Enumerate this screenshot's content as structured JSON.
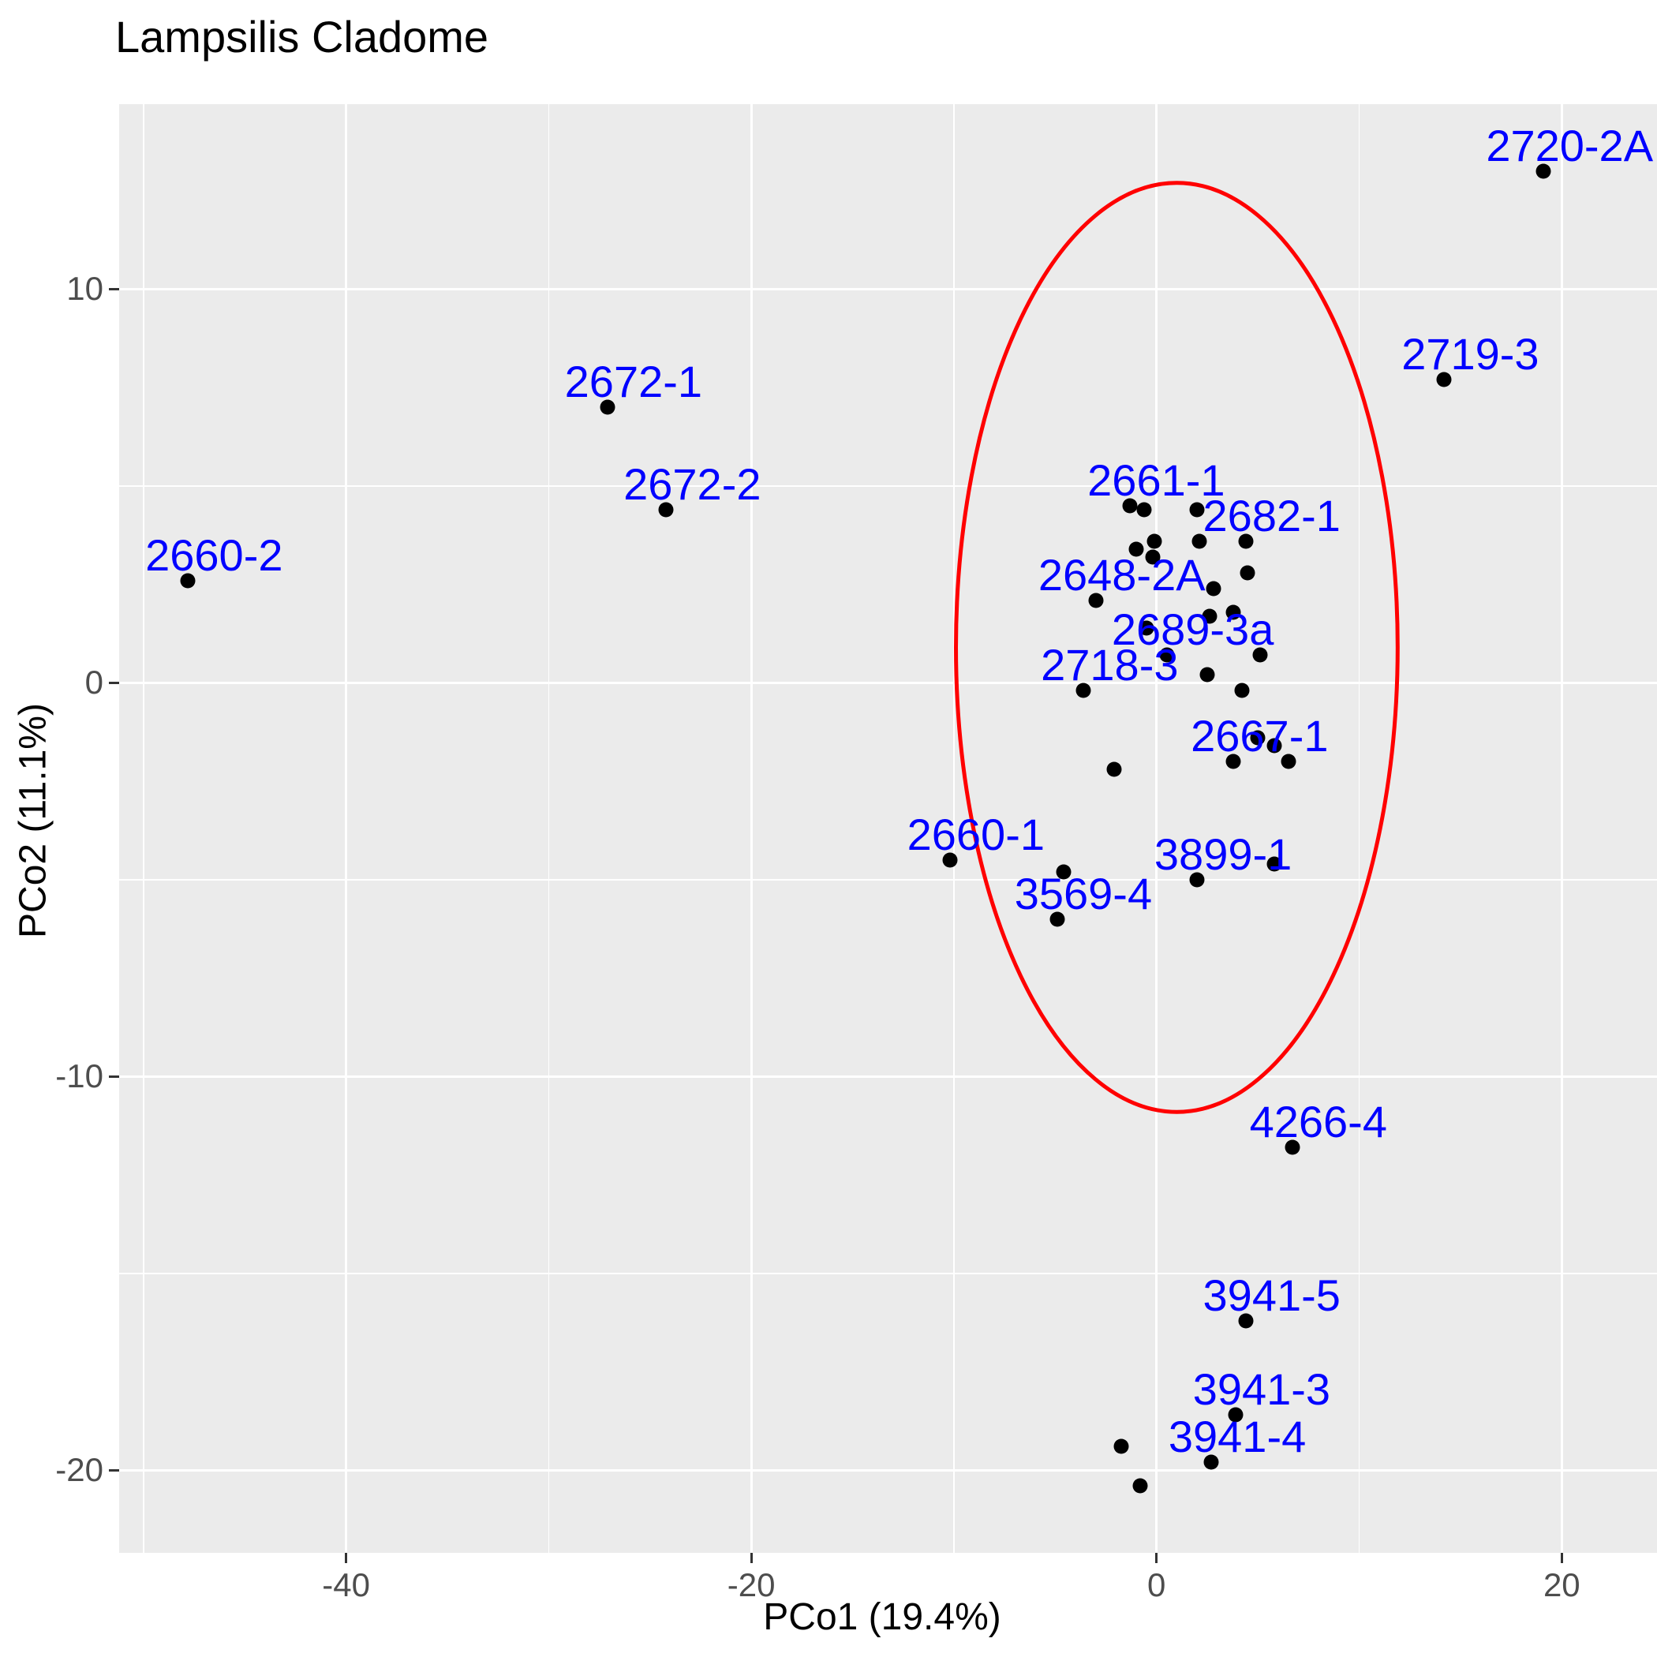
{
  "title": "Lampsilis Cladome",
  "axes": {
    "x": {
      "label": "PCo1 (19.4%)",
      "tick_labels": [
        "-40",
        "-20",
        "0",
        "20"
      ],
      "major_ticks": [
        -40,
        -20,
        0,
        20
      ],
      "minor_ticks": [
        -50,
        -30,
        -10,
        10
      ],
      "range": [
        -51.2,
        24.7
      ]
    },
    "y": {
      "label": "PCo2 (11.1%)",
      "tick_labels": [
        "10",
        "0",
        "-10",
        "-20"
      ],
      "major_ticks": [
        10,
        0,
        -10,
        -20
      ],
      "minor_ticks": [
        5,
        -5,
        -15
      ],
      "range": [
        -22.1,
        14.7
      ]
    }
  },
  "colors": {
    "panel_background": "#EBEBEB",
    "gridline": "#FFFFFF",
    "point": "#000000",
    "point_label": "#0000FF",
    "ellipse": "#FF0000",
    "tick_text": "#4d4d4d",
    "axis_title_text": "#000000",
    "title_text": "#000000"
  },
  "chart_data": {
    "type": "scatter",
    "title": "Lampsilis Cladome",
    "xlabel": "PCo1 (19.4%)",
    "ylabel": "PCo2 (11.1%)",
    "xlim": [
      -51.2,
      24.7
    ],
    "ylim": [
      -22.1,
      14.7
    ],
    "grid": "on",
    "legend": "none",
    "labeled_points": [
      {
        "label": "2660-2",
        "x": -47.8,
        "y": 2.6
      },
      {
        "label": "2672-1",
        "x": -27.1,
        "y": 7.0
      },
      {
        "label": "2672-2",
        "x": -24.2,
        "y": 4.4
      },
      {
        "label": "2660-1",
        "x": -10.2,
        "y": -4.5
      },
      {
        "label": "3569-4",
        "x": -4.9,
        "y": -6.0
      },
      {
        "label": "2648-2A",
        "x": -3.0,
        "y": 2.1
      },
      {
        "label": "2718-3",
        "x": -3.6,
        "y": -0.2
      },
      {
        "label": "2661-1",
        "x": -1.3,
        "y": 4.5
      },
      {
        "label": "2682-1",
        "x": 4.4,
        "y": 3.6
      },
      {
        "label": "2689-3a",
        "x": 0.5,
        "y": 0.7
      },
      {
        "label": "2667-1",
        "x": 3.8,
        "y": -2.0
      },
      {
        "label": "3899-1",
        "x": 2.0,
        "y": -5.0
      },
      {
        "label": "4266-4",
        "x": 6.7,
        "y": -11.8
      },
      {
        "label": "3941-5",
        "x": 4.4,
        "y": -16.2
      },
      {
        "label": "3941-3",
        "x": 3.9,
        "y": -18.6
      },
      {
        "label": "3941-4",
        "x": 2.7,
        "y": -19.8
      },
      {
        "label": "2719-3",
        "x": 14.2,
        "y": 7.7
      },
      {
        "label": "2720-2A",
        "x": 19.1,
        "y": 13.0
      }
    ],
    "unlabeled_points": [
      {
        "x": -0.6,
        "y": 4.4
      },
      {
        "x": 2.0,
        "y": 4.4
      },
      {
        "x": -0.1,
        "y": 3.6
      },
      {
        "x": -1.0,
        "y": 3.4
      },
      {
        "x": -0.2,
        "y": 3.2
      },
      {
        "x": 2.1,
        "y": 3.6
      },
      {
        "x": 4.5,
        "y": 2.8
      },
      {
        "x": 2.8,
        "y": 2.4
      },
      {
        "x": 2.6,
        "y": 1.7
      },
      {
        "x": 3.8,
        "y": 1.8
      },
      {
        "x": -0.5,
        "y": 1.4
      },
      {
        "x": 5.1,
        "y": 0.7
      },
      {
        "x": 2.5,
        "y": 0.2
      },
      {
        "x": 4.2,
        "y": -0.2
      },
      {
        "x": 5.0,
        "y": -1.4
      },
      {
        "x": 5.8,
        "y": -1.6
      },
      {
        "x": 6.5,
        "y": -2.0
      },
      {
        "x": -2.1,
        "y": -2.2
      },
      {
        "x": -4.6,
        "y": -4.8
      },
      {
        "x": 5.8,
        "y": -4.6
      },
      {
        "x": -1.75,
        "y": -19.4
      },
      {
        "x": -0.8,
        "y": -20.4
      }
    ],
    "ellipse": {
      "cx": 1.0,
      "cy": 0.9,
      "rx": 10.9,
      "ry": 11.8
    }
  }
}
